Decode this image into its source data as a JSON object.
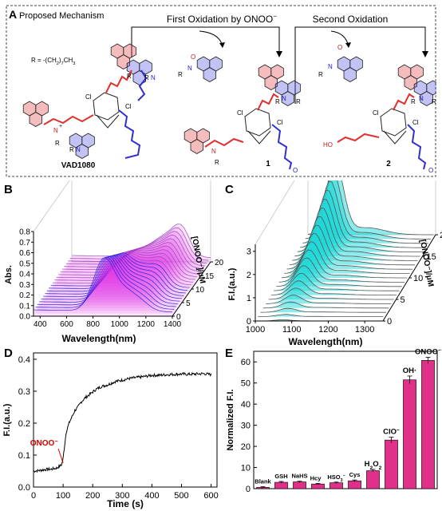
{
  "panel_a": {
    "letter": "A",
    "title": "Proposed Mechanism",
    "step1": "First Oxidation by ONOO",
    "step1_sup": "−",
    "step2": "Second Oxidation",
    "r_def": "R = -(CH",
    "r_def_tail": ")",
    "r_def_sub1": "2",
    "r_def_sub2": "7",
    "r_def_end": "CH",
    "r_def_sub3": "3",
    "compound0": "VAD1080",
    "compound1": "1",
    "compound2": "2",
    "atom_cl": "Cl",
    "atom_n": "N",
    "atom_r": "R",
    "atom_ho": "HO",
    "atom_o": "O",
    "plus": "+"
  },
  "chart_data": [
    {
      "panel": "B",
      "type": "line",
      "xlabel": "Wavelength(nm)",
      "ylabel": "Abs.",
      "zlabel": "[ONOO⁻]/μM",
      "x_ticks": [
        "400",
        "600",
        "800",
        "1000",
        "1200",
        "1400"
      ],
      "y_ticks": [
        "0.0",
        "0.1",
        "0.2",
        "0.3",
        "0.4",
        "0.5",
        "0.6",
        "0.7",
        "0.8"
      ],
      "z_ticks": [
        "0",
        "5",
        "10",
        "15",
        "20"
      ],
      "xlim": [
        350,
        1400
      ],
      "ylim": [
        0,
        0.8
      ],
      "zlim": [
        0,
        20
      ],
      "series_count": 21,
      "colors": {
        "early": "#2020e0",
        "late": "#a040c0",
        "fill": "#e030e8"
      }
    },
    {
      "panel": "C",
      "type": "line",
      "xlabel": "Wavelength(nm)",
      "ylabel": "F.I.(a.u.)",
      "zlabel": "[ONOO⁻]/μM",
      "x_ticks": [
        "1000",
        "1100",
        "1200",
        "1300"
      ],
      "y_ticks": [
        "0",
        "1",
        "2",
        "3"
      ],
      "z_ticks": [
        "0",
        "5",
        "10",
        "15",
        "20"
      ],
      "xlim": [
        1000,
        1350
      ],
      "ylim": [
        0,
        3.3
      ],
      "zlim": [
        0,
        20
      ],
      "series_count": 21,
      "colors": {
        "line": "#555555",
        "fill": "#20d8d8"
      }
    },
    {
      "panel": "D",
      "type": "line",
      "xlabel": "Time (s)",
      "ylabel": "F.I.(a.u.)",
      "x_ticks": [
        "0",
        "100",
        "200",
        "300",
        "400",
        "500",
        "600"
      ],
      "y_ticks": [
        "0.0",
        "0.1",
        "0.2",
        "0.3",
        "0.4"
      ],
      "xlim": [
        0,
        620
      ],
      "ylim": [
        0,
        0.42
      ],
      "annotation": "ONOO",
      "annotation_sup": "−",
      "annotation_x": 100,
      "series": [
        {
          "x": [
            0,
            20,
            40,
            60,
            80,
            95,
            100,
            105,
            110,
            120,
            130,
            140,
            150,
            160,
            175,
            190,
            210,
            230,
            250,
            275,
            300,
            325,
            350,
            375,
            400,
            425,
            450,
            475,
            500,
            525,
            550,
            575,
            600
          ],
          "y": [
            0.05,
            0.052,
            0.055,
            0.056,
            0.06,
            0.07,
            0.09,
            0.13,
            0.17,
            0.2,
            0.22,
            0.24,
            0.25,
            0.265,
            0.28,
            0.29,
            0.305,
            0.315,
            0.32,
            0.33,
            0.335,
            0.34,
            0.343,
            0.346,
            0.35,
            0.35,
            0.352,
            0.353,
            0.354,
            0.353,
            0.354,
            0.355,
            0.352
          ]
        }
      ],
      "color": "#000000"
    },
    {
      "panel": "E",
      "type": "bar",
      "ylabel": "Normalized F.I.",
      "y_ticks": [
        "0",
        "10",
        "20",
        "30",
        "40",
        "50",
        "60"
      ],
      "ylim": [
        0,
        65
      ],
      "categories": [
        "Blank",
        "GSH",
        "NaHS",
        "Hcy",
        "HSO3",
        "Cys",
        "H2O2",
        "ClO",
        "OH·",
        "ONOO"
      ],
      "category_labels": [
        {
          "text": "Blank",
          "sub": "",
          "sup": ""
        },
        {
          "text": "GSH",
          "sub": "",
          "sup": ""
        },
        {
          "text": "NaHS",
          "sub": "",
          "sup": ""
        },
        {
          "text": "Hcy",
          "sub": "",
          "sup": ""
        },
        {
          "text": "HSO",
          "sub": "3",
          "sup": "−"
        },
        {
          "text": "Cys",
          "sub": "",
          "sup": ""
        },
        {
          "text": "H",
          "sub": "2",
          "sup": "",
          "tail": "O",
          "tail_sub": "2"
        },
        {
          "text": "ClO",
          "sub": "",
          "sup": "−"
        },
        {
          "text": "OH·",
          "sub": "",
          "sup": ""
        },
        {
          "text": "ONOO",
          "sub": "",
          "sup": "−"
        }
      ],
      "values": [
        0.6,
        3.0,
        3.2,
        2.2,
        2.8,
        3.7,
        8.5,
        23.0,
        51.5,
        60.7
      ],
      "errors": [
        0.3,
        0.4,
        0.3,
        0.3,
        0.3,
        0.4,
        0.6,
        1.4,
        1.8,
        1.5
      ],
      "color": "#e0308a"
    }
  ],
  "panel_letters": {
    "b": "B",
    "c": "C",
    "d": "D",
    "e": "E"
  }
}
